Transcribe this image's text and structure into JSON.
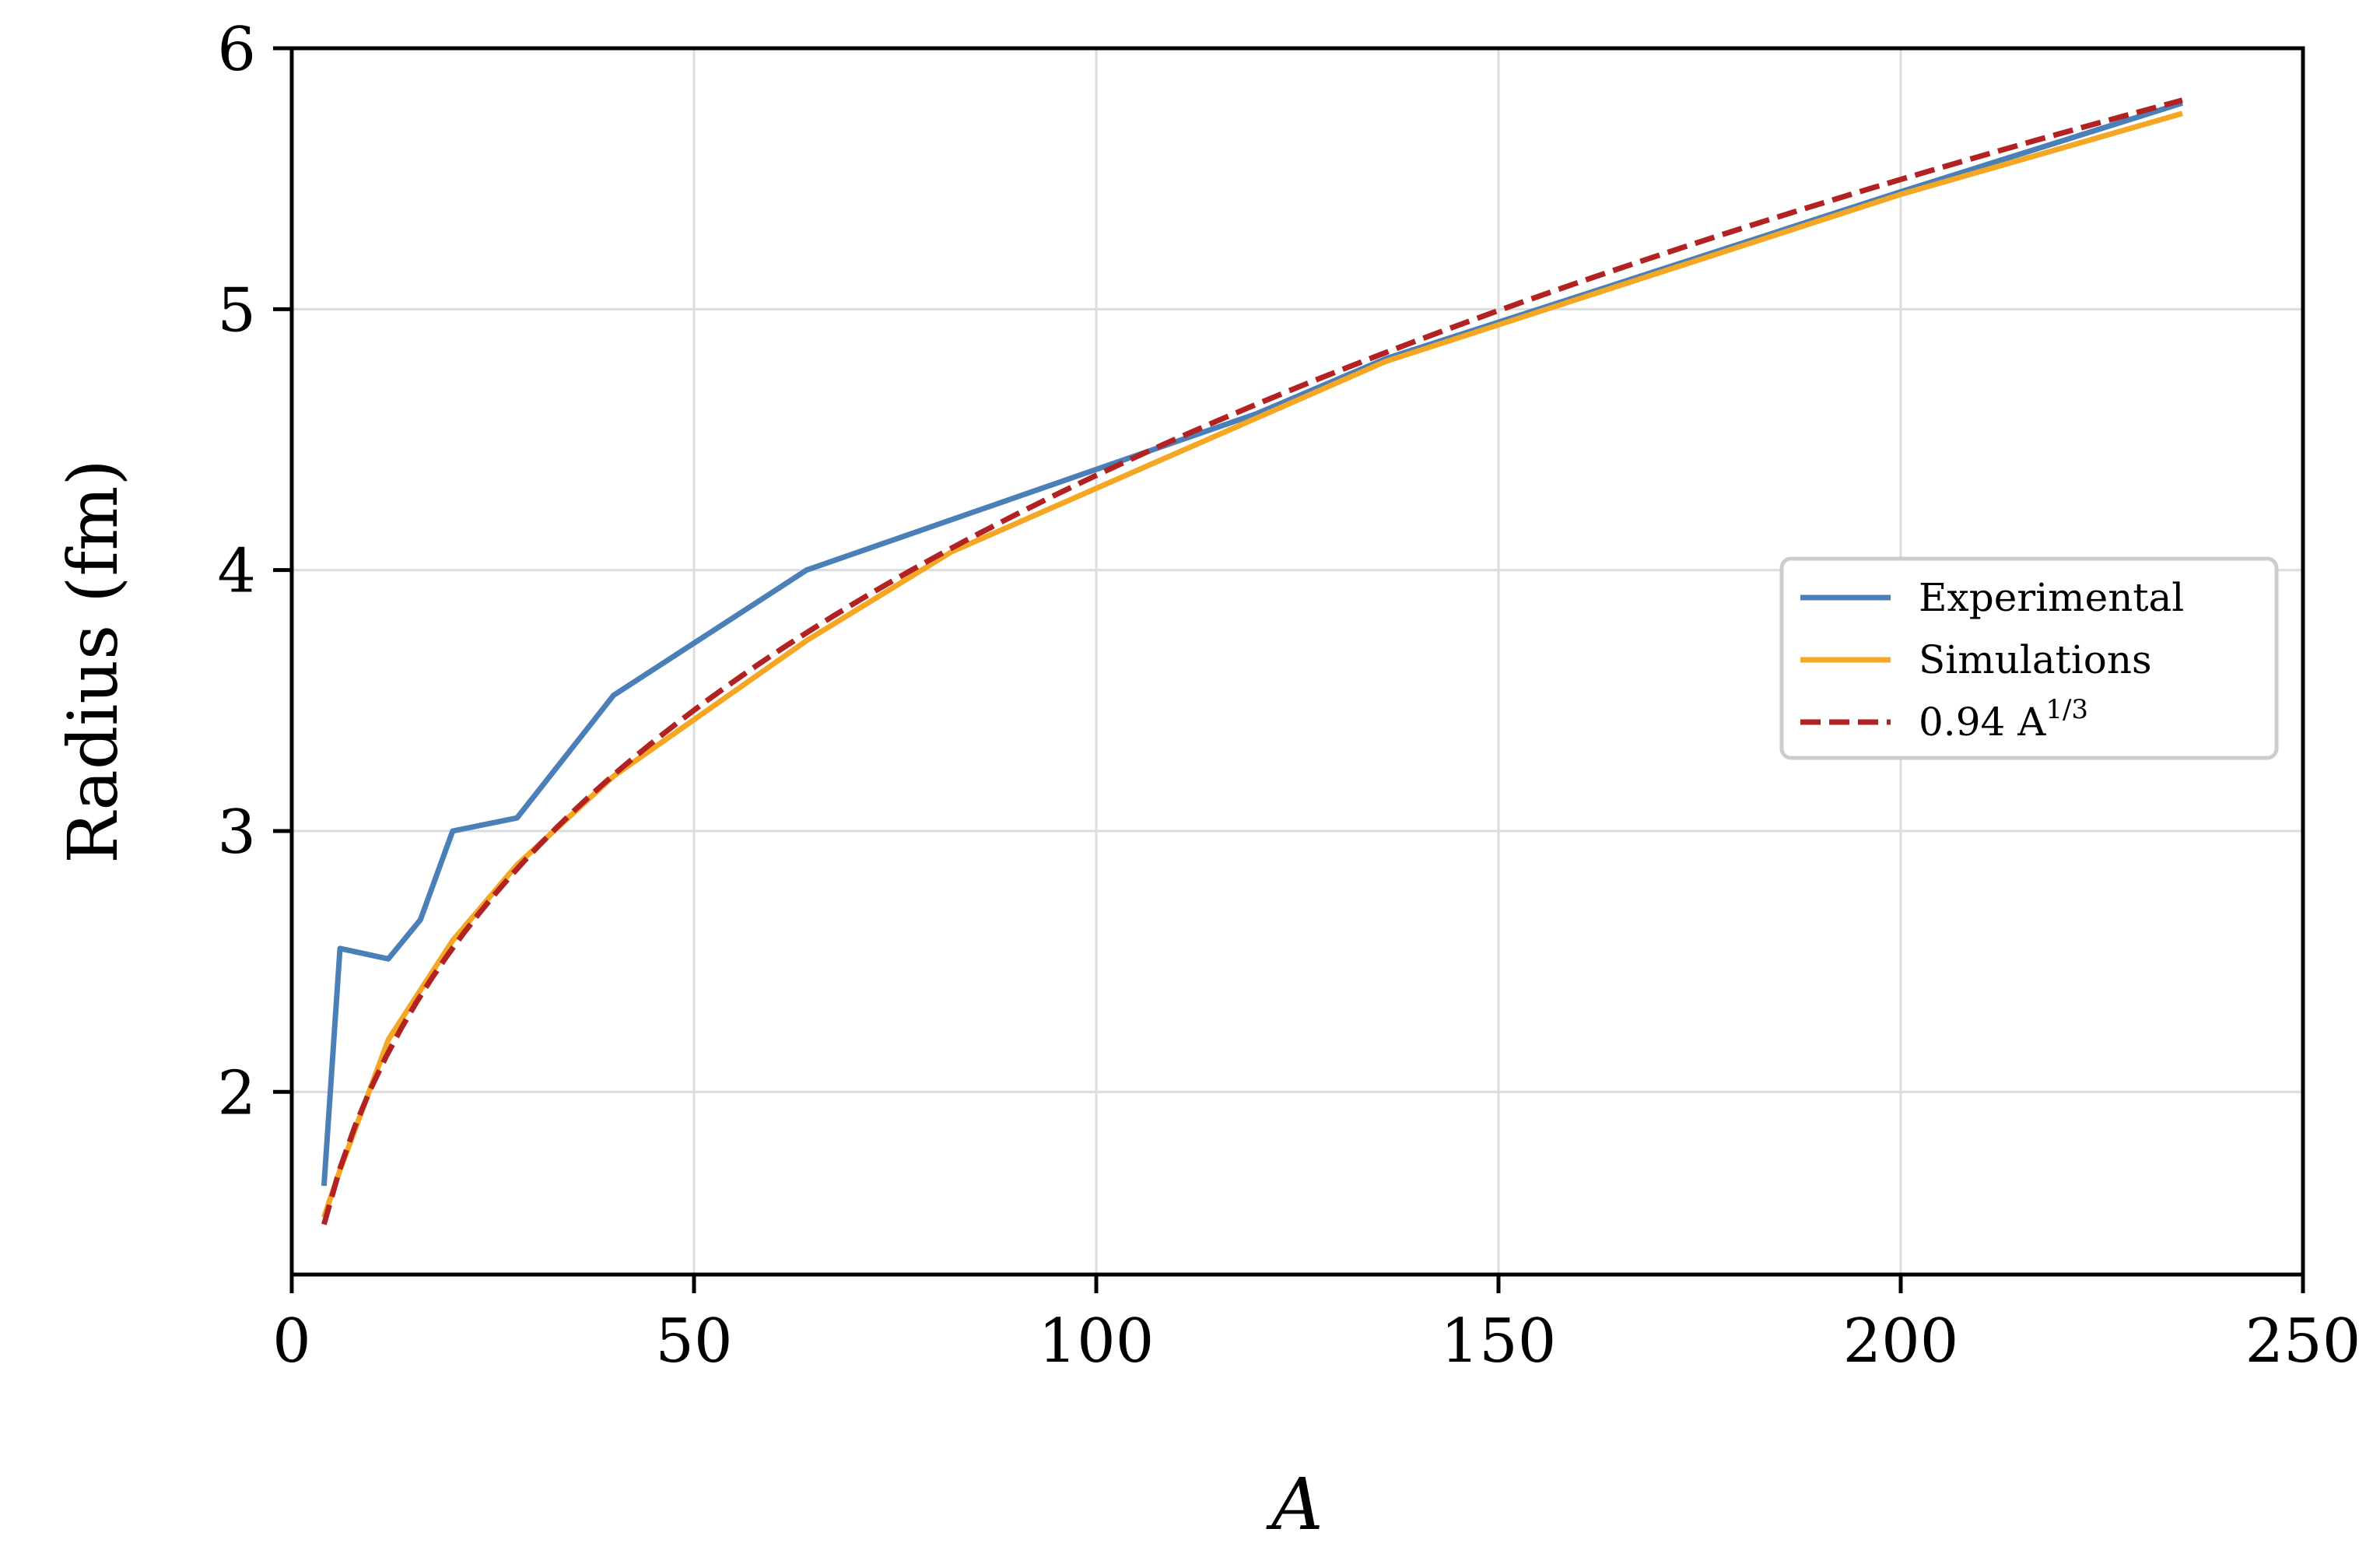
{
  "chart_data": {
    "type": "line",
    "title": "",
    "xlabel": "A",
    "ylabel": "Radius (fm)",
    "xlim": [
      0,
      250
    ],
    "ylim": [
      1.3,
      6.0
    ],
    "xticks": [
      0,
      50,
      100,
      150,
      200,
      250
    ],
    "yticks": [
      2,
      3,
      4,
      5,
      6
    ],
    "xtick_labels": [
      "0",
      "50",
      "100",
      "150",
      "200",
      "250"
    ],
    "ytick_labels": [
      "2",
      "3",
      "4",
      "5",
      "6"
    ],
    "grid": true,
    "legend_position": "center-right",
    "series": [
      {
        "name": "Experimental",
        "color": "#4a7fb8",
        "style": "solid",
        "x": [
          4,
          6,
          12,
          16,
          20,
          28,
          40,
          64,
          120,
          136,
          150,
          160,
          200,
          235
        ],
        "y": [
          1.64,
          2.55,
          2.51,
          2.66,
          3.0,
          3.05,
          3.52,
          4.0,
          4.6,
          4.81,
          4.95,
          5.05,
          5.45,
          5.79
        ]
      },
      {
        "name": "Simulations",
        "color": "#f5a623",
        "style": "solid",
        "x": [
          4,
          6,
          12,
          20,
          28,
          40,
          64,
          82,
          136,
          200,
          235
        ],
        "y": [
          1.52,
          1.7,
          2.2,
          2.58,
          2.87,
          3.21,
          3.73,
          4.07,
          4.8,
          5.44,
          5.75
        ]
      },
      {
        "name": "0.94 A",
        "name_superscript": "1/3",
        "color": "#b22222",
        "style": "dashed",
        "function": "0.94*A^(1/3)",
        "x_range": [
          4,
          235
        ],
        "samples": 120
      }
    ]
  }
}
